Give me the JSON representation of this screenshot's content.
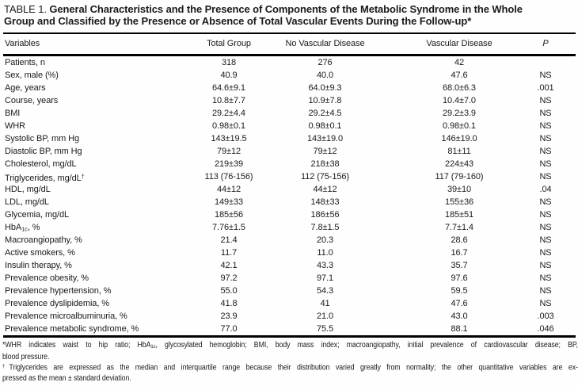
{
  "title": {
    "label": "TABLE 1.",
    "line1": "General Characteristics and the Presence of Components of the Metabolic Syndrome in the Whole",
    "line2": "Group and Classified by the Presence or Absence of Total Vascular Events During the Follow-up*"
  },
  "table": {
    "columns": [
      "Variables",
      "Total Group",
      "No Vascular Disease",
      "Vascular Disease",
      "P"
    ],
    "rows": [
      {
        "label": [
          {
            "text": "Patients, n"
          }
        ],
        "values": [
          "318",
          "276",
          "42",
          ""
        ]
      },
      {
        "label": [
          {
            "text": "Sex, male (%)"
          }
        ],
        "values": [
          "40.9",
          "40.0",
          "47.6",
          "NS"
        ]
      },
      {
        "label": [
          {
            "text": "Age, years"
          }
        ],
        "values": [
          "64.6±9.1",
          "64.0±9.3",
          "68.0±6.3",
          ".001"
        ]
      },
      {
        "label": [
          {
            "text": "Course, years"
          }
        ],
        "values": [
          "10.8±7.7",
          "10.9±7.8",
          "10.4±7.0",
          "NS"
        ]
      },
      {
        "label": [
          {
            "text": "BMI"
          }
        ],
        "values": [
          "29.2±4.4",
          "29.2±4.5",
          "29.2±3.9",
          "NS"
        ]
      },
      {
        "label": [
          {
            "text": "WHR"
          }
        ],
        "values": [
          "0.98±0.1",
          "0.98±0.1",
          "0.98±0.1",
          "NS"
        ]
      },
      {
        "label": [
          {
            "text": "Systolic BP, mm Hg"
          }
        ],
        "values": [
          "143±19.5",
          "143±19.0",
          "146±19.0",
          "NS"
        ]
      },
      {
        "label": [
          {
            "text": "Diastolic BP, mm Hg"
          }
        ],
        "values": [
          "79±12",
          "79±12",
          "81±11",
          "NS"
        ]
      },
      {
        "label": [
          {
            "text": "Cholesterol, mg/dL"
          }
        ],
        "values": [
          "219±39",
          "218±38",
          "224±43",
          "NS"
        ]
      },
      {
        "label": [
          {
            "text": "Triglycerides, mg/dL"
          },
          {
            "text": "†",
            "style": "sup"
          }
        ],
        "values": [
          "113 (76-156)",
          "112 (75-156)",
          "117 (79-160)",
          "NS"
        ]
      },
      {
        "label": [
          {
            "text": "HDL, mg/dL"
          }
        ],
        "values": [
          "44±12",
          "44±12",
          "39±10",
          ".04"
        ]
      },
      {
        "label": [
          {
            "text": "LDL, mg/dL"
          }
        ],
        "values": [
          "149±33",
          "148±33",
          "155±36",
          "NS"
        ]
      },
      {
        "label": [
          {
            "text": "Glycemia, mg/dL"
          }
        ],
        "values": [
          "185±56",
          "186±56",
          "185±51",
          "NS"
        ]
      },
      {
        "label": [
          {
            "text": "HbA"
          },
          {
            "text": "1c",
            "style": "sub"
          },
          {
            "text": ", %"
          }
        ],
        "values": [
          "7.76±1.5",
          "7.8±1.5",
          "7.7±1.4",
          "NS"
        ]
      },
      {
        "label": [
          {
            "text": "Macroangiopathy, %"
          }
        ],
        "values": [
          "21.4",
          "20.3",
          "28.6",
          "NS"
        ]
      },
      {
        "label": [
          {
            "text": "Active smokers, %"
          }
        ],
        "values": [
          "11.7",
          "11.0",
          "16.7",
          "NS"
        ]
      },
      {
        "label": [
          {
            "text": "Insulin therapy, %"
          }
        ],
        "values": [
          "42.1",
          "43.3",
          "35.7",
          "NS"
        ]
      },
      {
        "label": [
          {
            "text": "Prevalence obesity, %"
          }
        ],
        "values": [
          "97.2",
          "97.1",
          "97.6",
          "NS"
        ]
      },
      {
        "label": [
          {
            "text": "Prevalence hypertension, %"
          }
        ],
        "values": [
          "55.0",
          "54.3",
          "59.5",
          "NS"
        ]
      },
      {
        "label": [
          {
            "text": "Prevalence dyslipidemia, %"
          }
        ],
        "values": [
          "41.8",
          "41",
          "47.6",
          "NS"
        ]
      },
      {
        "label": [
          {
            "text": "Prevalence microalbuminuria, %"
          }
        ],
        "values": [
          "23.9",
          "21.0",
          "43.0",
          ".003"
        ]
      },
      {
        "label": [
          {
            "text": "Prevalence metabolic syndrome, %"
          }
        ],
        "values": [
          "77.0",
          "75.5",
          "88.1",
          ".046"
        ]
      }
    ]
  },
  "footnotes": {
    "f1_line1": [
      {
        "text": "*WHR indicates waist to hip ratio; HbA"
      },
      {
        "text": "1c",
        "style": "sub"
      },
      {
        "text": ", glycosylated hemoglobin; BMI, body mass index; macroangiopathy, initial prevalence of cardiovascular disease; BP,"
      }
    ],
    "f1_line2": [
      {
        "text": "blood pressure."
      }
    ],
    "f2_line1": [
      {
        "text": "†",
        "style": "sup"
      },
      {
        "text": "Triglycerides are expressed as the median and interquartile range because their distribution varied greatly from normality; the other quantitative variables are ex-"
      }
    ],
    "f2_line2": [
      {
        "text": "pressed as the mean ± standard deviation."
      }
    ]
  },
  "colors": {
    "text": "#1a1a1a",
    "rule": "#000000",
    "background": "#fefefe"
  }
}
